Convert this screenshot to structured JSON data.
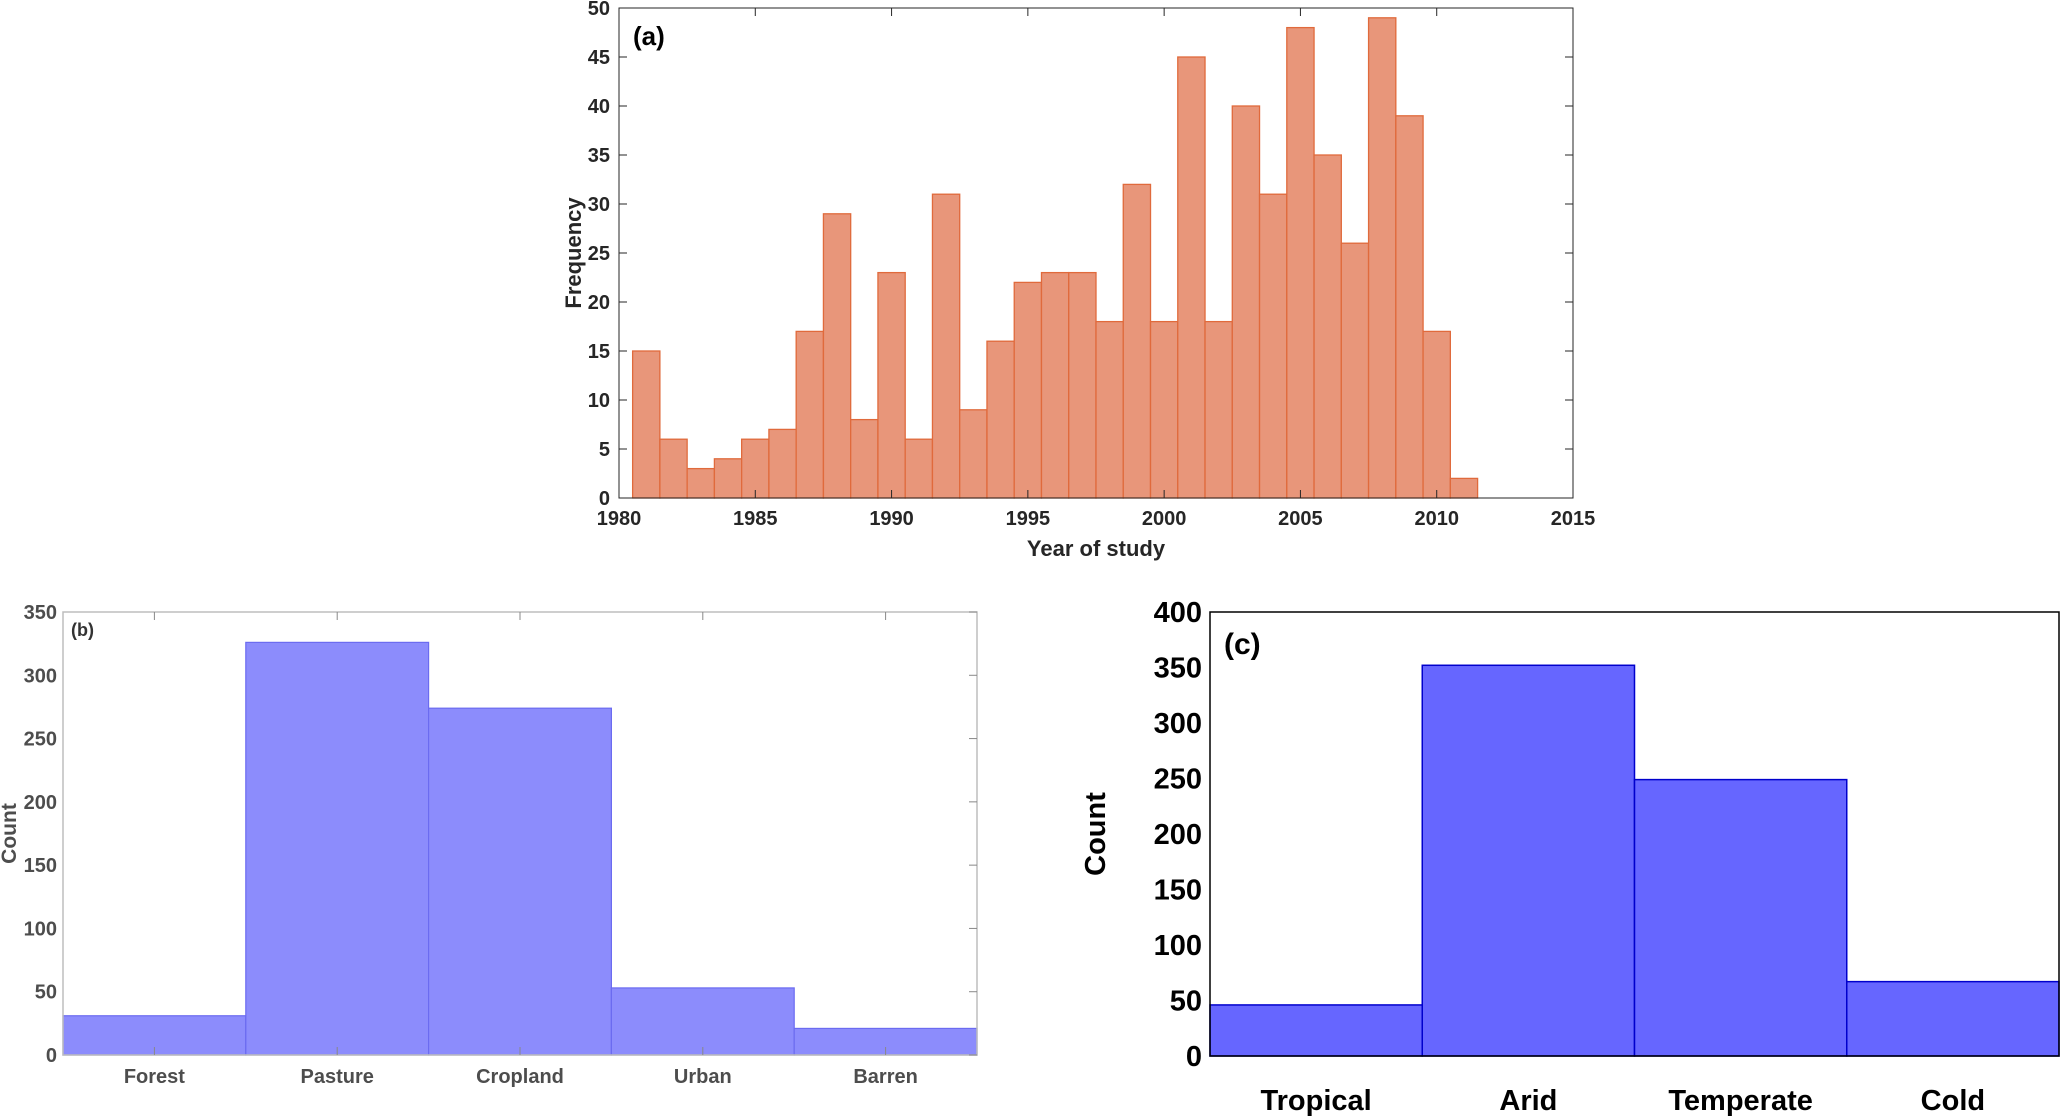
{
  "chart_data": [
    {
      "type": "bar",
      "panel_label": "(a)",
      "title": "",
      "xlabel": "Year of study",
      "ylabel": "Frequency",
      "xlim": [
        1980,
        2015
      ],
      "ylim": [
        0,
        50
      ],
      "xticks": [
        1980,
        1985,
        1990,
        1995,
        2000,
        2005,
        2010,
        2015
      ],
      "yticks": [
        0,
        5,
        10,
        15,
        20,
        25,
        30,
        35,
        40,
        45,
        50
      ],
      "bin_width": 1,
      "x": [
        1981,
        1982,
        1983,
        1984,
        1985,
        1986,
        1987,
        1988,
        1989,
        1990,
        1991,
        1992,
        1993,
        1994,
        1995,
        1996,
        1997,
        1998,
        1999,
        2000,
        2001,
        2002,
        2003,
        2004,
        2005,
        2006,
        2007,
        2008,
        2009,
        2010,
        2011
      ],
      "values": [
        15,
        6,
        3,
        4,
        6,
        7,
        17,
        29,
        8,
        23,
        6,
        31,
        9,
        16,
        22,
        23,
        23,
        18,
        32,
        18,
        45,
        18,
        40,
        31,
        48,
        35,
        26,
        49,
        39,
        17,
        2
      ],
      "color": "#e8967a",
      "edge_color": "#e06a3c",
      "grid": false
    },
    {
      "type": "bar",
      "panel_label": "(b)",
      "xlabel": "",
      "ylabel": "Count",
      "categories": [
        "Forest",
        "Pasture",
        "Cropland",
        "Urban",
        "Barren"
      ],
      "values": [
        31,
        326,
        274,
        53,
        21
      ],
      "ylim": [
        0,
        350
      ],
      "yticks": [
        0,
        50,
        100,
        150,
        200,
        250,
        300,
        350
      ],
      "color": "#8c8cfc",
      "edge_color": "#6b6bf0",
      "grid": false
    },
    {
      "type": "bar",
      "panel_label": "(c)",
      "xlabel": "",
      "ylabel": "Count",
      "categories": [
        "Tropical",
        "Arid",
        "Temperate",
        "Cold"
      ],
      "values": [
        46,
        352,
        249,
        67
      ],
      "ylim": [
        0,
        400
      ],
      "yticks": [
        0,
        50,
        100,
        150,
        200,
        250,
        300,
        350,
        400
      ],
      "color": "#6666ff",
      "edge_color": "#0000cc",
      "grid": false
    }
  ]
}
